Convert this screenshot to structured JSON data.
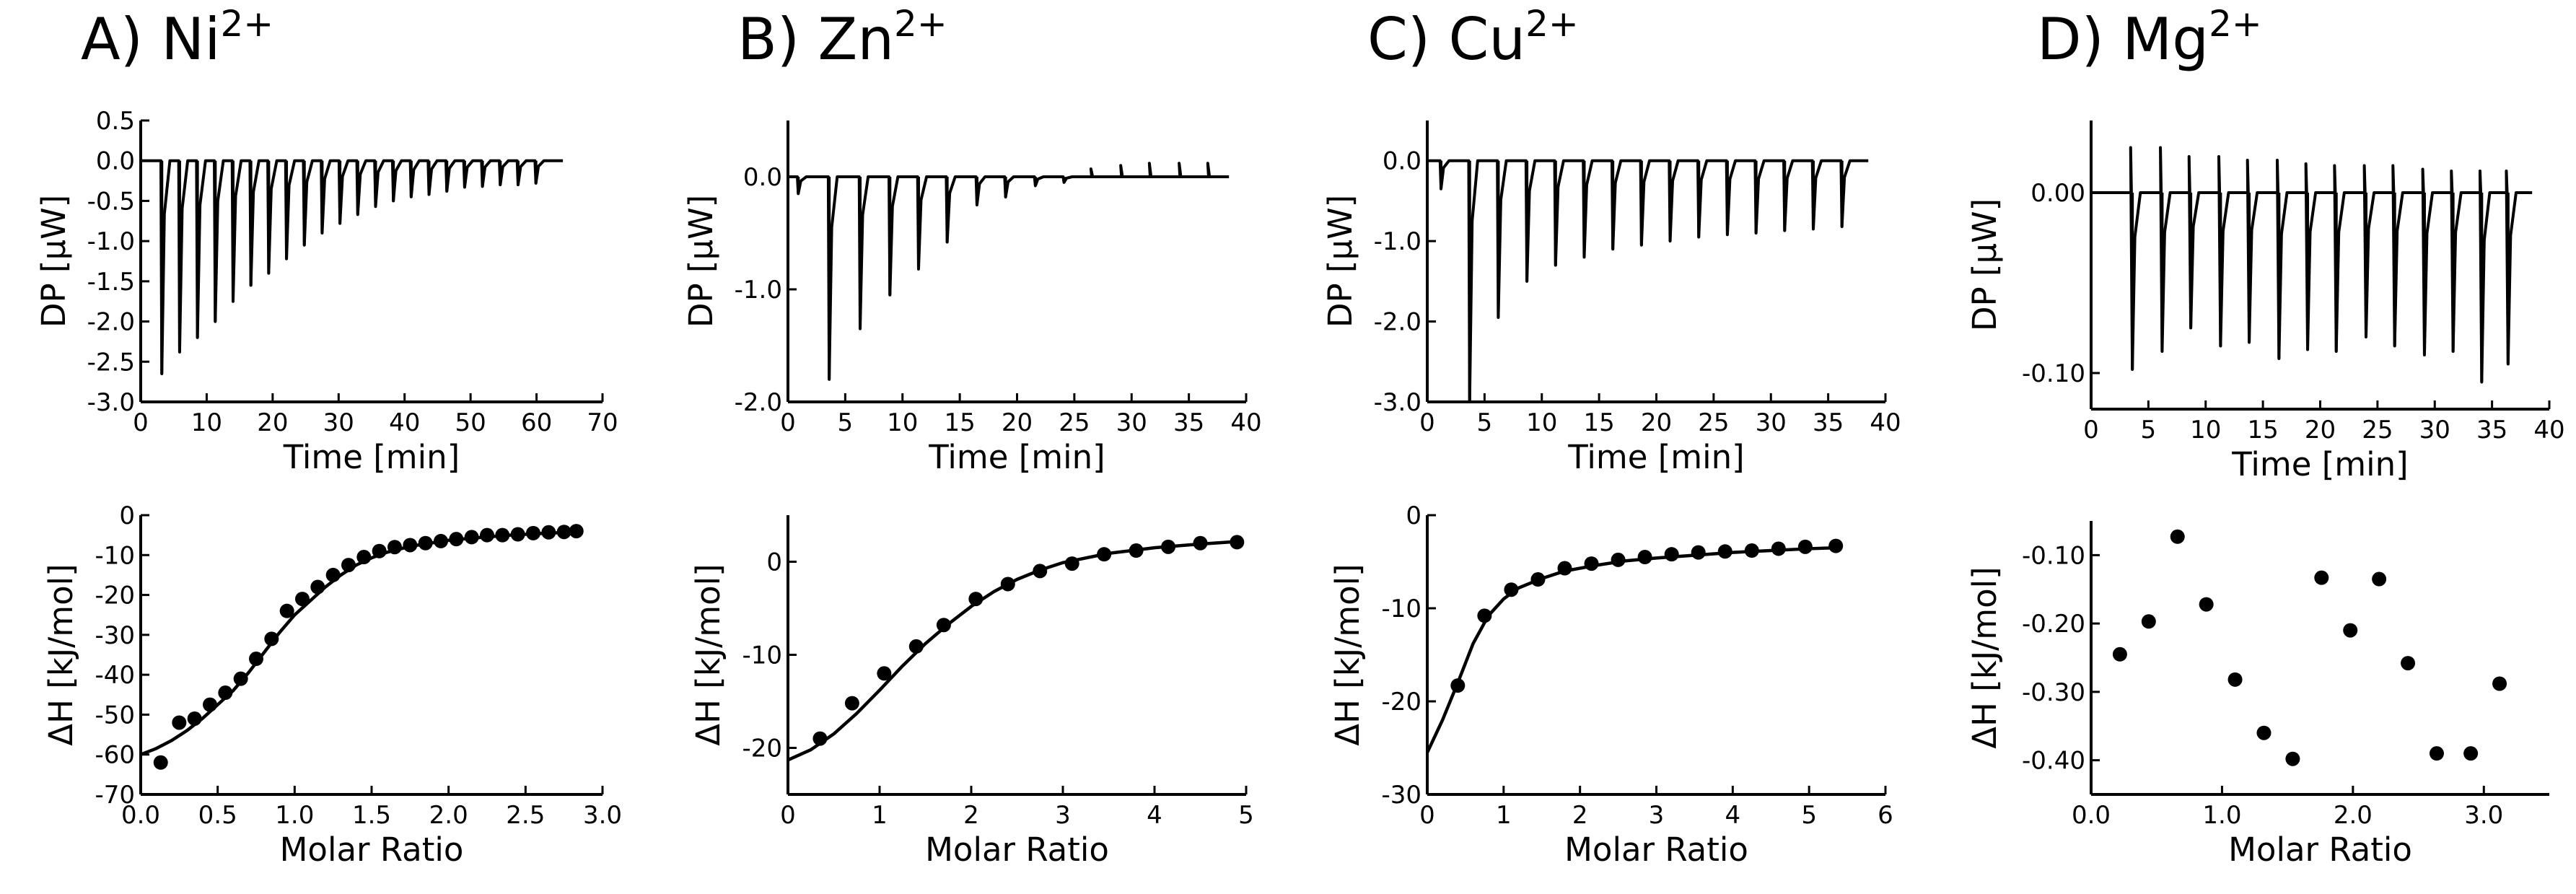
{
  "figure": {
    "panels": [
      {
        "id": "A",
        "letter": "A)",
        "ion": "Ni",
        "charge": "2+"
      },
      {
        "id": "B",
        "letter": "B)",
        "ion": "Zn",
        "charge": "2+"
      },
      {
        "id": "C",
        "letter": "C)",
        "ion": "Cu",
        "charge": "2+"
      },
      {
        "id": "D",
        "letter": "D)",
        "ion": "Mg",
        "charge": "2+"
      }
    ]
  },
  "chart_data": [
    {
      "panel": "A",
      "row": "top",
      "type": "line",
      "xlabel": "Time [min]",
      "ylabel": "DP [µW]",
      "xlim": [
        0,
        70
      ],
      "ylim": [
        -3.0,
        0.5
      ],
      "xticks": [
        "0",
        "10",
        "20",
        "30",
        "40",
        "50",
        "60",
        "70"
      ],
      "yticks": [
        "0.5",
        "0.0",
        "-0.5",
        "-1.0",
        "-1.5",
        "-2.0",
        "-2.5",
        "-3.0"
      ],
      "trace_end": 64,
      "injection_times": [
        3.2,
        5.9,
        8.6,
        11.3,
        14.0,
        16.7,
        19.4,
        22.1,
        24.8,
        27.5,
        30.2,
        32.9,
        35.6,
        38.3,
        41.0,
        43.7,
        46.4,
        49.1,
        51.8,
        54.5,
        57.2,
        59.9
      ],
      "peak_values": [
        -2.65,
        -2.38,
        -2.2,
        -2.0,
        -1.75,
        -1.55,
        -1.4,
        -1.22,
        -1.05,
        -0.9,
        -0.78,
        -0.67,
        -0.57,
        -0.5,
        -0.45,
        -0.42,
        -0.38,
        -0.33,
        -0.32,
        -0.3,
        -0.3,
        -0.28
      ],
      "overshoot": [
        0,
        0,
        0,
        0,
        0,
        0,
        0,
        0,
        0,
        0,
        0,
        0,
        0,
        0,
        0,
        0,
        0,
        0,
        0,
        0,
        0,
        0
      ]
    },
    {
      "panel": "B",
      "row": "top",
      "type": "line",
      "xlabel": "Time [min]",
      "ylabel": "DP [µW]",
      "xlim": [
        0,
        40
      ],
      "ylim": [
        -2.0,
        0.5
      ],
      "xticks": [
        "0",
        "5",
        "10",
        "15",
        "20",
        "25",
        "30",
        "35",
        "40"
      ],
      "yticks": [
        "0.0",
        "-1.0",
        "-2.0"
      ],
      "trace_end": 38.5,
      "injection_times": [
        0.9,
        3.6,
        6.3,
        8.9,
        11.4,
        13.9,
        16.5,
        19.0,
        21.6,
        24.1,
        26.6,
        29.2,
        31.7,
        34.3,
        36.8
      ],
      "peak_values": [
        -0.15,
        -1.8,
        -1.35,
        -1.05,
        -0.82,
        -0.58,
        -0.25,
        -0.18,
        -0.08,
        -0.05,
        0.0,
        0.0,
        0.0,
        0.0,
        0.0
      ],
      "overshoot": [
        0,
        0,
        0,
        0,
        0,
        0,
        0,
        0,
        0,
        0,
        0.07,
        0.1,
        0.12,
        0.12,
        0.12
      ]
    },
    {
      "panel": "C",
      "row": "top",
      "type": "line",
      "xlabel": "Time [min]",
      "ylabel": "DP [µW]",
      "xlim": [
        0,
        40
      ],
      "ylim": [
        -3.0,
        0.5
      ],
      "xticks": [
        "0",
        "5",
        "10",
        "15",
        "20",
        "25",
        "30",
        "35",
        "40"
      ],
      "yticks": [
        "0.0",
        "-1.0",
        "-2.0",
        "-3.0"
      ],
      "trace_end": 38.5,
      "injection_times": [
        1.2,
        3.7,
        6.2,
        8.7,
        11.2,
        13.7,
        16.2,
        18.7,
        21.2,
        23.7,
        26.2,
        28.7,
        31.2,
        33.7,
        36.2
      ],
      "peak_values": [
        -0.35,
        -3.0,
        -1.95,
        -1.5,
        -1.3,
        -1.2,
        -1.1,
        -1.05,
        -1.0,
        -0.95,
        -0.92,
        -0.9,
        -0.87,
        -0.85,
        -0.82
      ],
      "overshoot": [
        0,
        0,
        0,
        0,
        0,
        0,
        0,
        0,
        0,
        0,
        0,
        0,
        0,
        0,
        0
      ]
    },
    {
      "panel": "D",
      "row": "top",
      "type": "line",
      "xlabel": "Time [min]",
      "ylabel": "DP [µW]",
      "xlim": [
        0,
        40
      ],
      "ylim": [
        -0.12,
        0.04
      ],
      "xticks": [
        "0",
        "5",
        "10",
        "15",
        "20",
        "25",
        "30",
        "35",
        "40"
      ],
      "yticks": [
        "0.00",
        "-0.10"
      ],
      "trace_end": 38.5,
      "injection_times": [
        3.6,
        6.2,
        8.7,
        11.3,
        13.8,
        16.4,
        18.9,
        21.4,
        24.0,
        26.5,
        29.1,
        31.6,
        34.1,
        36.4
      ],
      "peak_values": [
        -0.098,
        -0.088,
        -0.075,
        -0.085,
        -0.083,
        -0.092,
        -0.087,
        -0.088,
        -0.08,
        -0.085,
        -0.09,
        -0.088,
        -0.105,
        -0.095
      ],
      "overshoot": [
        0.025,
        0.025,
        0.02,
        0.02,
        0.018,
        0.018,
        0.016,
        0.015,
        0.015,
        0.015,
        0.013,
        0.012,
        0.012,
        0.012
      ]
    },
    {
      "panel": "A",
      "row": "bottom",
      "type": "scatter",
      "xlabel": "Molar Ratio",
      "ylabel": "ΔH [kJ/mol]",
      "xlim": [
        0,
        3.0
      ],
      "ylim": [
        -70,
        0
      ],
      "xticks": [
        "0.0",
        "0.5",
        "1.0",
        "1.5",
        "2.0",
        "2.5",
        "3.0"
      ],
      "yticks": [
        "0",
        "-10",
        "-20",
        "-30",
        "-40",
        "-50",
        "-60",
        "-70"
      ],
      "x": [
        0.13,
        0.25,
        0.35,
        0.45,
        0.55,
        0.65,
        0.75,
        0.85,
        0.95,
        1.05,
        1.15,
        1.25,
        1.35,
        1.45,
        1.55,
        1.65,
        1.75,
        1.85,
        1.95,
        2.05,
        2.15,
        2.25,
        2.35,
        2.45,
        2.55,
        2.65,
        2.75,
        2.83
      ],
      "y": [
        -62,
        -52,
        -51,
        -47.5,
        -44.5,
        -41,
        -36,
        -31,
        -24,
        -21,
        -18,
        -15,
        -12.5,
        -10.5,
        -9,
        -8,
        -7.5,
        -7,
        -6.5,
        -6,
        -5.5,
        -5,
        -5,
        -4.8,
        -4.5,
        -4.3,
        -4.2,
        -4
      ],
      "fit_x": [
        0.0,
        0.1,
        0.2,
        0.3,
        0.4,
        0.5,
        0.6,
        0.7,
        0.8,
        0.9,
        1.0,
        1.1,
        1.2,
        1.3,
        1.4,
        1.5,
        1.6,
        1.7,
        1.8,
        1.9,
        2.0,
        2.2,
        2.4,
        2.6,
        2.83
      ],
      "fit_y": [
        -60,
        -58.5,
        -56.5,
        -54,
        -51,
        -47.5,
        -44,
        -39.5,
        -34.5,
        -29.5,
        -25,
        -21.5,
        -18,
        -15,
        -12.5,
        -10.7,
        -9.3,
        -8.3,
        -7.5,
        -6.9,
        -6.3,
        -5.6,
        -5,
        -4.6,
        -4.2
      ]
    },
    {
      "panel": "B",
      "row": "bottom",
      "type": "scatter",
      "xlabel": "Molar Ratio",
      "ylabel": "ΔH [kJ/mol]",
      "xlim": [
        0,
        5
      ],
      "ylim": [
        -25,
        5
      ],
      "xticks": [
        "0",
        "1",
        "2",
        "3",
        "4",
        "5"
      ],
      "yticks": [
        "0",
        "-10",
        "-20"
      ],
      "x": [
        0.35,
        0.7,
        1.05,
        1.4,
        1.7,
        2.05,
        2.4,
        2.75,
        3.1,
        3.45,
        3.8,
        4.15,
        4.5,
        4.9
      ],
      "y": [
        -19,
        -15.2,
        -12,
        -9.1,
        -6.8,
        -4,
        -2.4,
        -1,
        -0.2,
        0.8,
        1.2,
        1.6,
        2,
        2.1
      ],
      "fit_x": [
        0.0,
        0.25,
        0.5,
        0.75,
        1.0,
        1.25,
        1.5,
        1.75,
        2.0,
        2.25,
        2.5,
        2.75,
        3.0,
        3.5,
        4.0,
        4.5,
        4.95
      ],
      "fit_y": [
        -21.3,
        -20.2,
        -18.5,
        -16.3,
        -13.8,
        -11.2,
        -8.8,
        -6.7,
        -4.8,
        -3.2,
        -1.9,
        -0.9,
        -0.1,
        0.9,
        1.5,
        1.9,
        2.2
      ]
    },
    {
      "panel": "C",
      "row": "bottom",
      "type": "scatter",
      "xlabel": "Molar Ratio",
      "ylabel": "ΔH [kJ/mol]",
      "xlim": [
        0,
        6
      ],
      "ylim": [
        -30,
        0
      ],
      "xticks": [
        "0",
        "1",
        "2",
        "3",
        "4",
        "5",
        "6"
      ],
      "yticks": [
        "0",
        "-10",
        "-20",
        "-30"
      ],
      "x": [
        0.4,
        0.75,
        1.1,
        1.45,
        1.8,
        2.15,
        2.5,
        2.85,
        3.2,
        3.55,
        3.9,
        4.25,
        4.6,
        4.95,
        5.35
      ],
      "y": [
        -18.3,
        -10.8,
        -8,
        -6.9,
        -5.7,
        -5.2,
        -4.8,
        -4.5,
        -4.2,
        -4,
        -3.9,
        -3.8,
        -3.6,
        -3.4,
        -3.3
      ],
      "fit_x": [
        0.0,
        0.2,
        0.4,
        0.6,
        0.8,
        1.0,
        1.2,
        1.5,
        1.8,
        2.2,
        2.6,
        3.0,
        3.5,
        4.0,
        4.5,
        5.0,
        5.35
      ],
      "fit_y": [
        -25.5,
        -22,
        -18,
        -13.8,
        -10.8,
        -9,
        -7.8,
        -6.8,
        -6,
        -5.4,
        -4.9,
        -4.6,
        -4.3,
        -4,
        -3.8,
        -3.6,
        -3.5
      ]
    },
    {
      "panel": "D",
      "row": "bottom",
      "type": "scatter",
      "xlabel": "Molar Ratio",
      "ylabel": "ΔH [kJ/mol]",
      "xlim": [
        0,
        3.5
      ],
      "ylim": [
        -0.45,
        -0.05
      ],
      "xticks": [
        "0.0",
        "1.0",
        "2.0",
        "3.0"
      ],
      "xtick_values": [
        0,
        1,
        2,
        3
      ],
      "yticks": [
        "-0.10",
        "-0.20",
        "-0.30",
        "-0.40"
      ],
      "x": [
        0.22,
        0.44,
        0.66,
        0.88,
        1.1,
        1.32,
        1.54,
        1.76,
        1.98,
        2.2,
        2.42,
        2.64,
        2.9,
        3.12
      ],
      "y": [
        -0.245,
        -0.197,
        -0.073,
        -0.172,
        -0.282,
        -0.36,
        -0.398,
        -0.133,
        -0.21,
        -0.135,
        -0.258,
        -0.39,
        -0.39,
        -0.288
      ]
    }
  ]
}
